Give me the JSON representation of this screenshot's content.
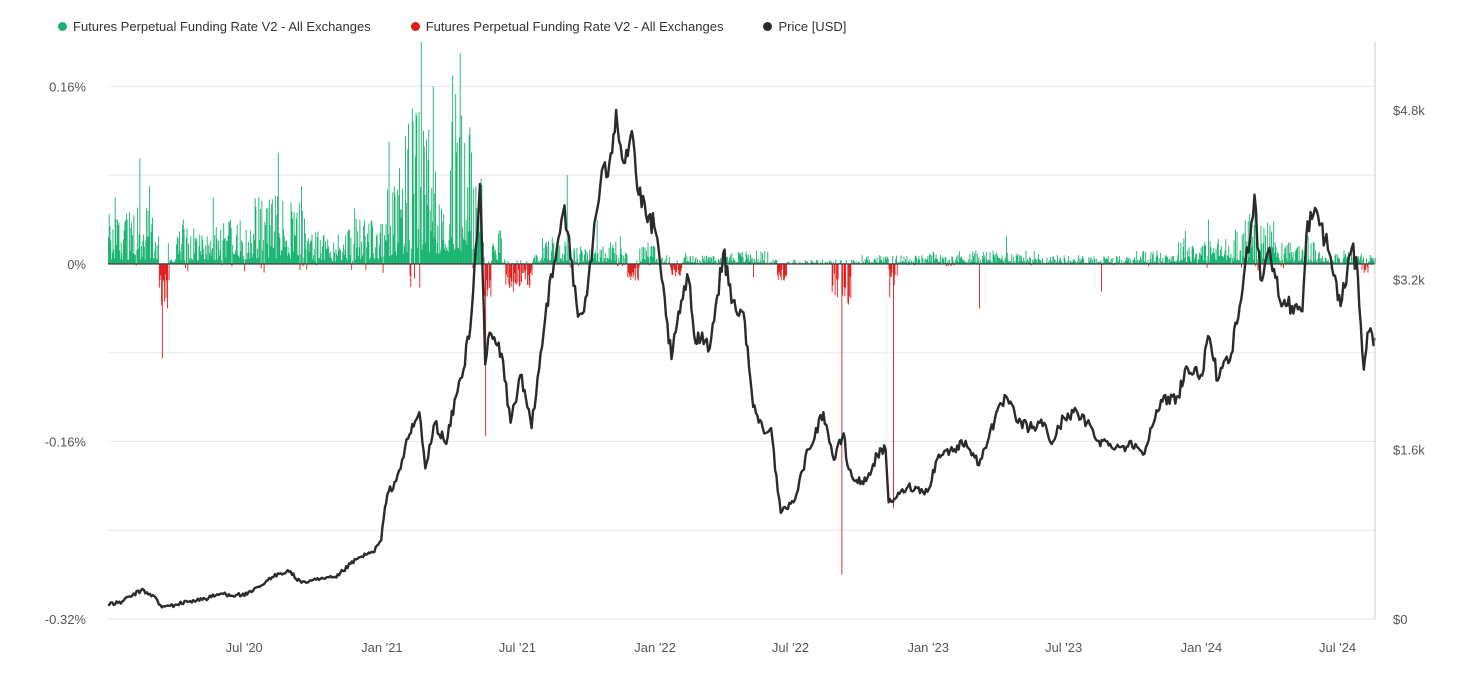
{
  "colors": {
    "positive": "#16b36e",
    "negative": "#e01b1b",
    "price": "#2b2b2b",
    "grid": "#e8e8e8",
    "zero_line": "#444444",
    "tick_text": "#555555",
    "right_axis": "#cccccc"
  },
  "chart_data": {
    "type": "bar+line",
    "title": "",
    "legend_position": "top-left",
    "grid": true,
    "series": [
      {
        "name": "Futures Perpetual Funding Rate V2 - All Exchanges",
        "type": "bar",
        "axis": "left",
        "sign": "positive"
      },
      {
        "name": "Futures Perpetual Funding Rate V2 - All Exchanges",
        "type": "bar",
        "axis": "left",
        "sign": "negative"
      },
      {
        "name": "Price [USD]",
        "type": "line",
        "axis": "right"
      }
    ],
    "x_range": [
      "2020-01-01",
      "2024-08-20"
    ],
    "x_ticks": [
      {
        "date": "2020-07-01",
        "label": "Jul '20"
      },
      {
        "date": "2021-01-01",
        "label": "Jan '21"
      },
      {
        "date": "2021-07-01",
        "label": "Jul '21"
      },
      {
        "date": "2022-01-01",
        "label": "Jan '22"
      },
      {
        "date": "2022-07-01",
        "label": "Jul '22"
      },
      {
        "date": "2023-01-01",
        "label": "Jan '23"
      },
      {
        "date": "2023-07-01",
        "label": "Jul '23"
      },
      {
        "date": "2024-01-01",
        "label": "Jan '24"
      },
      {
        "date": "2024-07-01",
        "label": "Jul '24"
      }
    ],
    "y_left": {
      "unit": "%",
      "range": [
        -0.32,
        0.2
      ],
      "ticks": [
        {
          "value": 0.16,
          "label": "0.16%"
        },
        {
          "value": 0,
          "label": "0%"
        },
        {
          "value": -0.16,
          "label": "-0.16%"
        },
        {
          "value": -0.32,
          "label": "-0.32%"
        }
      ]
    },
    "y_right": {
      "unit": "USD",
      "range": [
        0,
        5440
      ],
      "ticks": [
        {
          "value": 4800,
          "label": "$4.8k"
        },
        {
          "value": 3200,
          "label": "$3.2k"
        },
        {
          "value": 1600,
          "label": "$1.6k"
        },
        {
          "value": 0,
          "label": "$0"
        }
      ]
    },
    "price_points": [
      [
        "2020-01-01",
        130
      ],
      [
        "2020-01-20",
        165
      ],
      [
        "2020-02-14",
        270
      ],
      [
        "2020-03-01",
        225
      ],
      [
        "2020-03-13",
        110
      ],
      [
        "2020-04-01",
        135
      ],
      [
        "2020-04-20",
        170
      ],
      [
        "2020-05-10",
        190
      ],
      [
        "2020-06-01",
        240
      ],
      [
        "2020-06-20",
        225
      ],
      [
        "2020-07-05",
        230
      ],
      [
        "2020-07-25",
        320
      ],
      [
        "2020-08-15",
        430
      ],
      [
        "2020-09-01",
        450
      ],
      [
        "2020-09-10",
        360
      ],
      [
        "2020-09-25",
        350
      ],
      [
        "2020-10-15",
        380
      ],
      [
        "2020-11-01",
        390
      ],
      [
        "2020-11-20",
        520
      ],
      [
        "2020-12-05",
        590
      ],
      [
        "2020-12-20",
        630
      ],
      [
        "2020-12-31",
        740
      ],
      [
        "2021-01-05",
        1050
      ],
      [
        "2021-01-10",
        1200
      ],
      [
        "2021-01-20",
        1300
      ],
      [
        "2021-02-05",
        1700
      ],
      [
        "2021-02-20",
        1950
      ],
      [
        "2021-02-28",
        1420
      ],
      [
        "2021-03-13",
        1850
      ],
      [
        "2021-03-28",
        1650
      ],
      [
        "2021-04-10",
        2100
      ],
      [
        "2021-04-20",
        2350
      ],
      [
        "2021-05-01",
        2900
      ],
      [
        "2021-05-12",
        4100
      ],
      [
        "2021-05-19",
        2400
      ],
      [
        "2021-05-25",
        2700
      ],
      [
        "2021-06-10",
        2500
      ],
      [
        "2021-06-22",
        1850
      ],
      [
        "2021-07-05",
        2300
      ],
      [
        "2021-07-20",
        1800
      ],
      [
        "2021-08-05",
        2700
      ],
      [
        "2021-08-15",
        3250
      ],
      [
        "2021-09-02",
        3900
      ],
      [
        "2021-09-10",
        3400
      ],
      [
        "2021-09-20",
        2850
      ],
      [
        "2021-09-28",
        2900
      ],
      [
        "2021-10-10",
        3550
      ],
      [
        "2021-10-20",
        4100
      ],
      [
        "2021-11-01",
        4300
      ],
      [
        "2021-11-10",
        4800
      ],
      [
        "2021-11-20",
        4300
      ],
      [
        "2021-12-01",
        4600
      ],
      [
        "2021-12-10",
        4000
      ],
      [
        "2021-12-20",
        3800
      ],
      [
        "2021-12-31",
        3700
      ],
      [
        "2022-01-10",
        3200
      ],
      [
        "2022-01-23",
        2450
      ],
      [
        "2022-02-05",
        3000
      ],
      [
        "2022-02-15",
        3200
      ],
      [
        "2022-02-24",
        2600
      ],
      [
        "2022-03-05",
        2700
      ],
      [
        "2022-03-15",
        2550
      ],
      [
        "2022-04-02",
        3450
      ],
      [
        "2022-04-15",
        3000
      ],
      [
        "2022-05-01",
        2800
      ],
      [
        "2022-05-12",
        2000
      ],
      [
        "2022-05-25",
        1800
      ],
      [
        "2022-06-05",
        1800
      ],
      [
        "2022-06-14",
        1200
      ],
      [
        "2022-06-18",
        1000
      ],
      [
        "2022-07-05",
        1100
      ],
      [
        "2022-07-25",
        1600
      ],
      [
        "2022-08-14",
        1950
      ],
      [
        "2022-08-28",
        1500
      ],
      [
        "2022-09-10",
        1750
      ],
      [
        "2022-09-15",
        1450
      ],
      [
        "2022-09-25",
        1300
      ],
      [
        "2022-10-10",
        1300
      ],
      [
        "2022-10-25",
        1550
      ],
      [
        "2022-11-05",
        1600
      ],
      [
        "2022-11-09",
        1100
      ],
      [
        "2022-11-20",
        1150
      ],
      [
        "2022-12-05",
        1250
      ],
      [
        "2022-12-31",
        1200
      ],
      [
        "2023-01-15",
        1550
      ],
      [
        "2023-02-05",
        1600
      ],
      [
        "2023-02-20",
        1680
      ],
      [
        "2023-03-10",
        1450
      ],
      [
        "2023-03-25",
        1780
      ],
      [
        "2023-04-15",
        2100
      ],
      [
        "2023-05-01",
        1850
      ],
      [
        "2023-05-20",
        1800
      ],
      [
        "2023-06-05",
        1850
      ],
      [
        "2023-06-15",
        1650
      ],
      [
        "2023-07-01",
        1900
      ],
      [
        "2023-07-14",
        1950
      ],
      [
        "2023-08-01",
        1850
      ],
      [
        "2023-08-17",
        1680
      ],
      [
        "2023-09-01",
        1650
      ],
      [
        "2023-09-15",
        1620
      ],
      [
        "2023-10-05",
        1650
      ],
      [
        "2023-10-15",
        1550
      ],
      [
        "2023-10-25",
        1800
      ],
      [
        "2023-11-10",
        2050
      ],
      [
        "2023-12-01",
        2100
      ],
      [
        "2023-12-10",
        2350
      ],
      [
        "2023-12-31",
        2300
      ],
      [
        "2024-01-12",
        2650
      ],
      [
        "2024-01-23",
        2250
      ],
      [
        "2024-02-10",
        2500
      ],
      [
        "2024-02-25",
        3100
      ],
      [
        "2024-03-12",
        4000
      ],
      [
        "2024-03-20",
        3200
      ],
      [
        "2024-04-01",
        3500
      ],
      [
        "2024-04-15",
        3000
      ],
      [
        "2024-05-01",
        2950
      ],
      [
        "2024-05-15",
        2900
      ],
      [
        "2024-05-22",
        3750
      ],
      [
        "2024-06-05",
        3800
      ],
      [
        "2024-06-20",
        3450
      ],
      [
        "2024-07-05",
        2950
      ],
      [
        "2024-07-20",
        3500
      ],
      [
        "2024-07-28",
        3250
      ],
      [
        "2024-08-05",
        2350
      ],
      [
        "2024-08-10",
        2700
      ],
      [
        "2024-08-20",
        2650
      ]
    ],
    "funding_peaks": [
      [
        "2020-01-10",
        0.06
      ],
      [
        "2020-02-12",
        0.095
      ],
      [
        "2020-02-25",
        0.07
      ],
      [
        "2020-03-13",
        -0.085
      ],
      [
        "2020-03-20",
        -0.04
      ],
      [
        "2020-04-10",
        0.04
      ],
      [
        "2020-05-20",
        0.06
      ],
      [
        "2020-07-20",
        0.06
      ],
      [
        "2020-08-15",
        0.1
      ],
      [
        "2020-09-15",
        0.07
      ],
      [
        "2020-11-25",
        0.05
      ],
      [
        "2021-01-10",
        0.11
      ],
      [
        "2021-02-10",
        0.14
      ],
      [
        "2021-02-22",
        0.2
      ],
      [
        "2021-03-10",
        0.16
      ],
      [
        "2021-04-05",
        0.17
      ],
      [
        "2021-04-15",
        0.19
      ],
      [
        "2021-05-19",
        -0.155
      ],
      [
        "2021-06-25",
        -0.025
      ],
      [
        "2021-09-05",
        0.08
      ],
      [
        "2021-10-15",
        0.04
      ],
      [
        "2021-11-15",
        0.025
      ],
      [
        "2021-12-05",
        -0.015
      ],
      [
        "2022-01-24",
        -0.01
      ],
      [
        "2022-02-10",
        0.01
      ],
      [
        "2022-05-12",
        -0.012
      ],
      [
        "2022-06-18",
        -0.015
      ],
      [
        "2022-09-01",
        -0.03
      ],
      [
        "2022-09-07",
        -0.28
      ],
      [
        "2022-09-15",
        -0.035
      ],
      [
        "2022-11-10",
        -0.03
      ],
      [
        "2022-11-15",
        -0.22
      ],
      [
        "2023-03-10",
        -0.04
      ],
      [
        "2023-04-15",
        0.025
      ],
      [
        "2023-08-20",
        -0.025
      ],
      [
        "2023-12-10",
        0.03
      ],
      [
        "2024-01-10",
        0.04
      ],
      [
        "2024-03-05",
        0.045
      ],
      [
        "2024-03-12",
        0.06
      ],
      [
        "2024-04-01",
        0.035
      ],
      [
        "2024-05-22",
        0.025
      ],
      [
        "2024-08-05",
        -0.008
      ]
    ]
  }
}
